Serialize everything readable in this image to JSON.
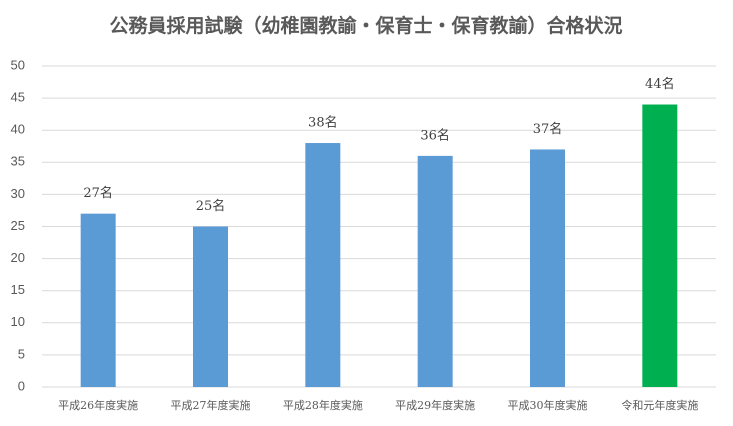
{
  "chart_data": {
    "type": "bar",
    "title": "公務員採用試験（幼稚園教諭・保育士・保育教諭）合格状況",
    "categories": [
      "平成26年度実施",
      "平成27年度実施",
      "平成28年度実施",
      "平成29年度実施",
      "平成30年度実施",
      "令和元年度実施"
    ],
    "values": [
      27,
      25,
      38,
      36,
      37,
      44
    ],
    "value_labels": [
      "27名",
      "25名",
      "38名",
      "36名",
      "37名",
      "44名"
    ],
    "colors": [
      "#5b9bd5",
      "#5b9bd5",
      "#5b9bd5",
      "#5b9bd5",
      "#5b9bd5",
      "#00b050"
    ],
    "ylim": [
      0,
      50
    ],
    "yticks": [
      0,
      5,
      10,
      15,
      20,
      25,
      30,
      35,
      40,
      45,
      50
    ],
    "grid": true
  }
}
